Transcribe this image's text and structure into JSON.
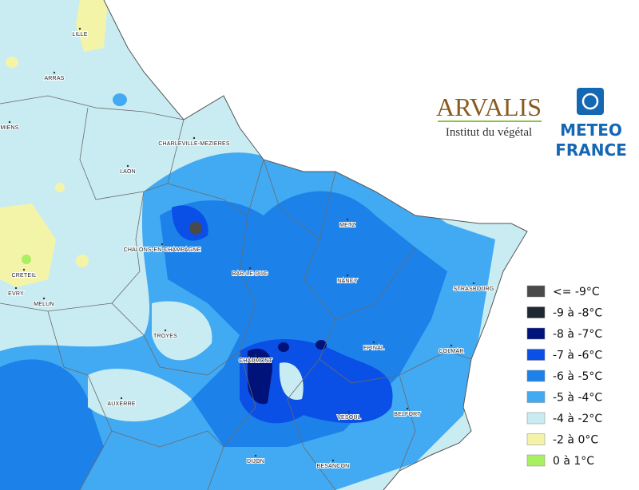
{
  "cities": [
    "LILLE",
    "ARRAS",
    "MIENS",
    "LAON",
    "CHARLEVILLE-MEZIERES",
    "CHALONS-EN-CHAMPAGNE",
    "CRETEIL",
    "EVRY",
    "MELUN",
    "TROYES",
    "BAR-LE-DUC",
    "METZ",
    "NANCY",
    "STRASBOURG",
    "EPINAL",
    "COLMAR",
    "CHAUMONT",
    "AUXERRE",
    "VESOUL",
    "BELFORT",
    "DIJON",
    "BESANCON"
  ],
  "logos": {
    "arvalis": "ARVALIS",
    "arvalis_subtitle": "Institut du végétal",
    "meteo_1": "METEO",
    "meteo_2": "FRANCE"
  },
  "legend": [
    {
      "label": "<= -9°C",
      "color": "#4a4a4a"
    },
    {
      "label": "-9 à -8°C",
      "color": "#1f2733"
    },
    {
      "label": "-8 à -7°C",
      "color": "#00137a"
    },
    {
      "label": "-7 à -6°C",
      "color": "#0a50e6"
    },
    {
      "label": "-6 à -5°C",
      "color": "#1c82ea"
    },
    {
      "label": "-5 à -4°C",
      "color": "#42aaf2"
    },
    {
      "label": "-4 à -2°C",
      "color": "#c9ecf2"
    },
    {
      "label": "-2 à 0°C",
      "color": "#f4f4a8"
    },
    {
      "label": "0 à 1°C",
      "color": "#a8ef62"
    }
  ]
}
